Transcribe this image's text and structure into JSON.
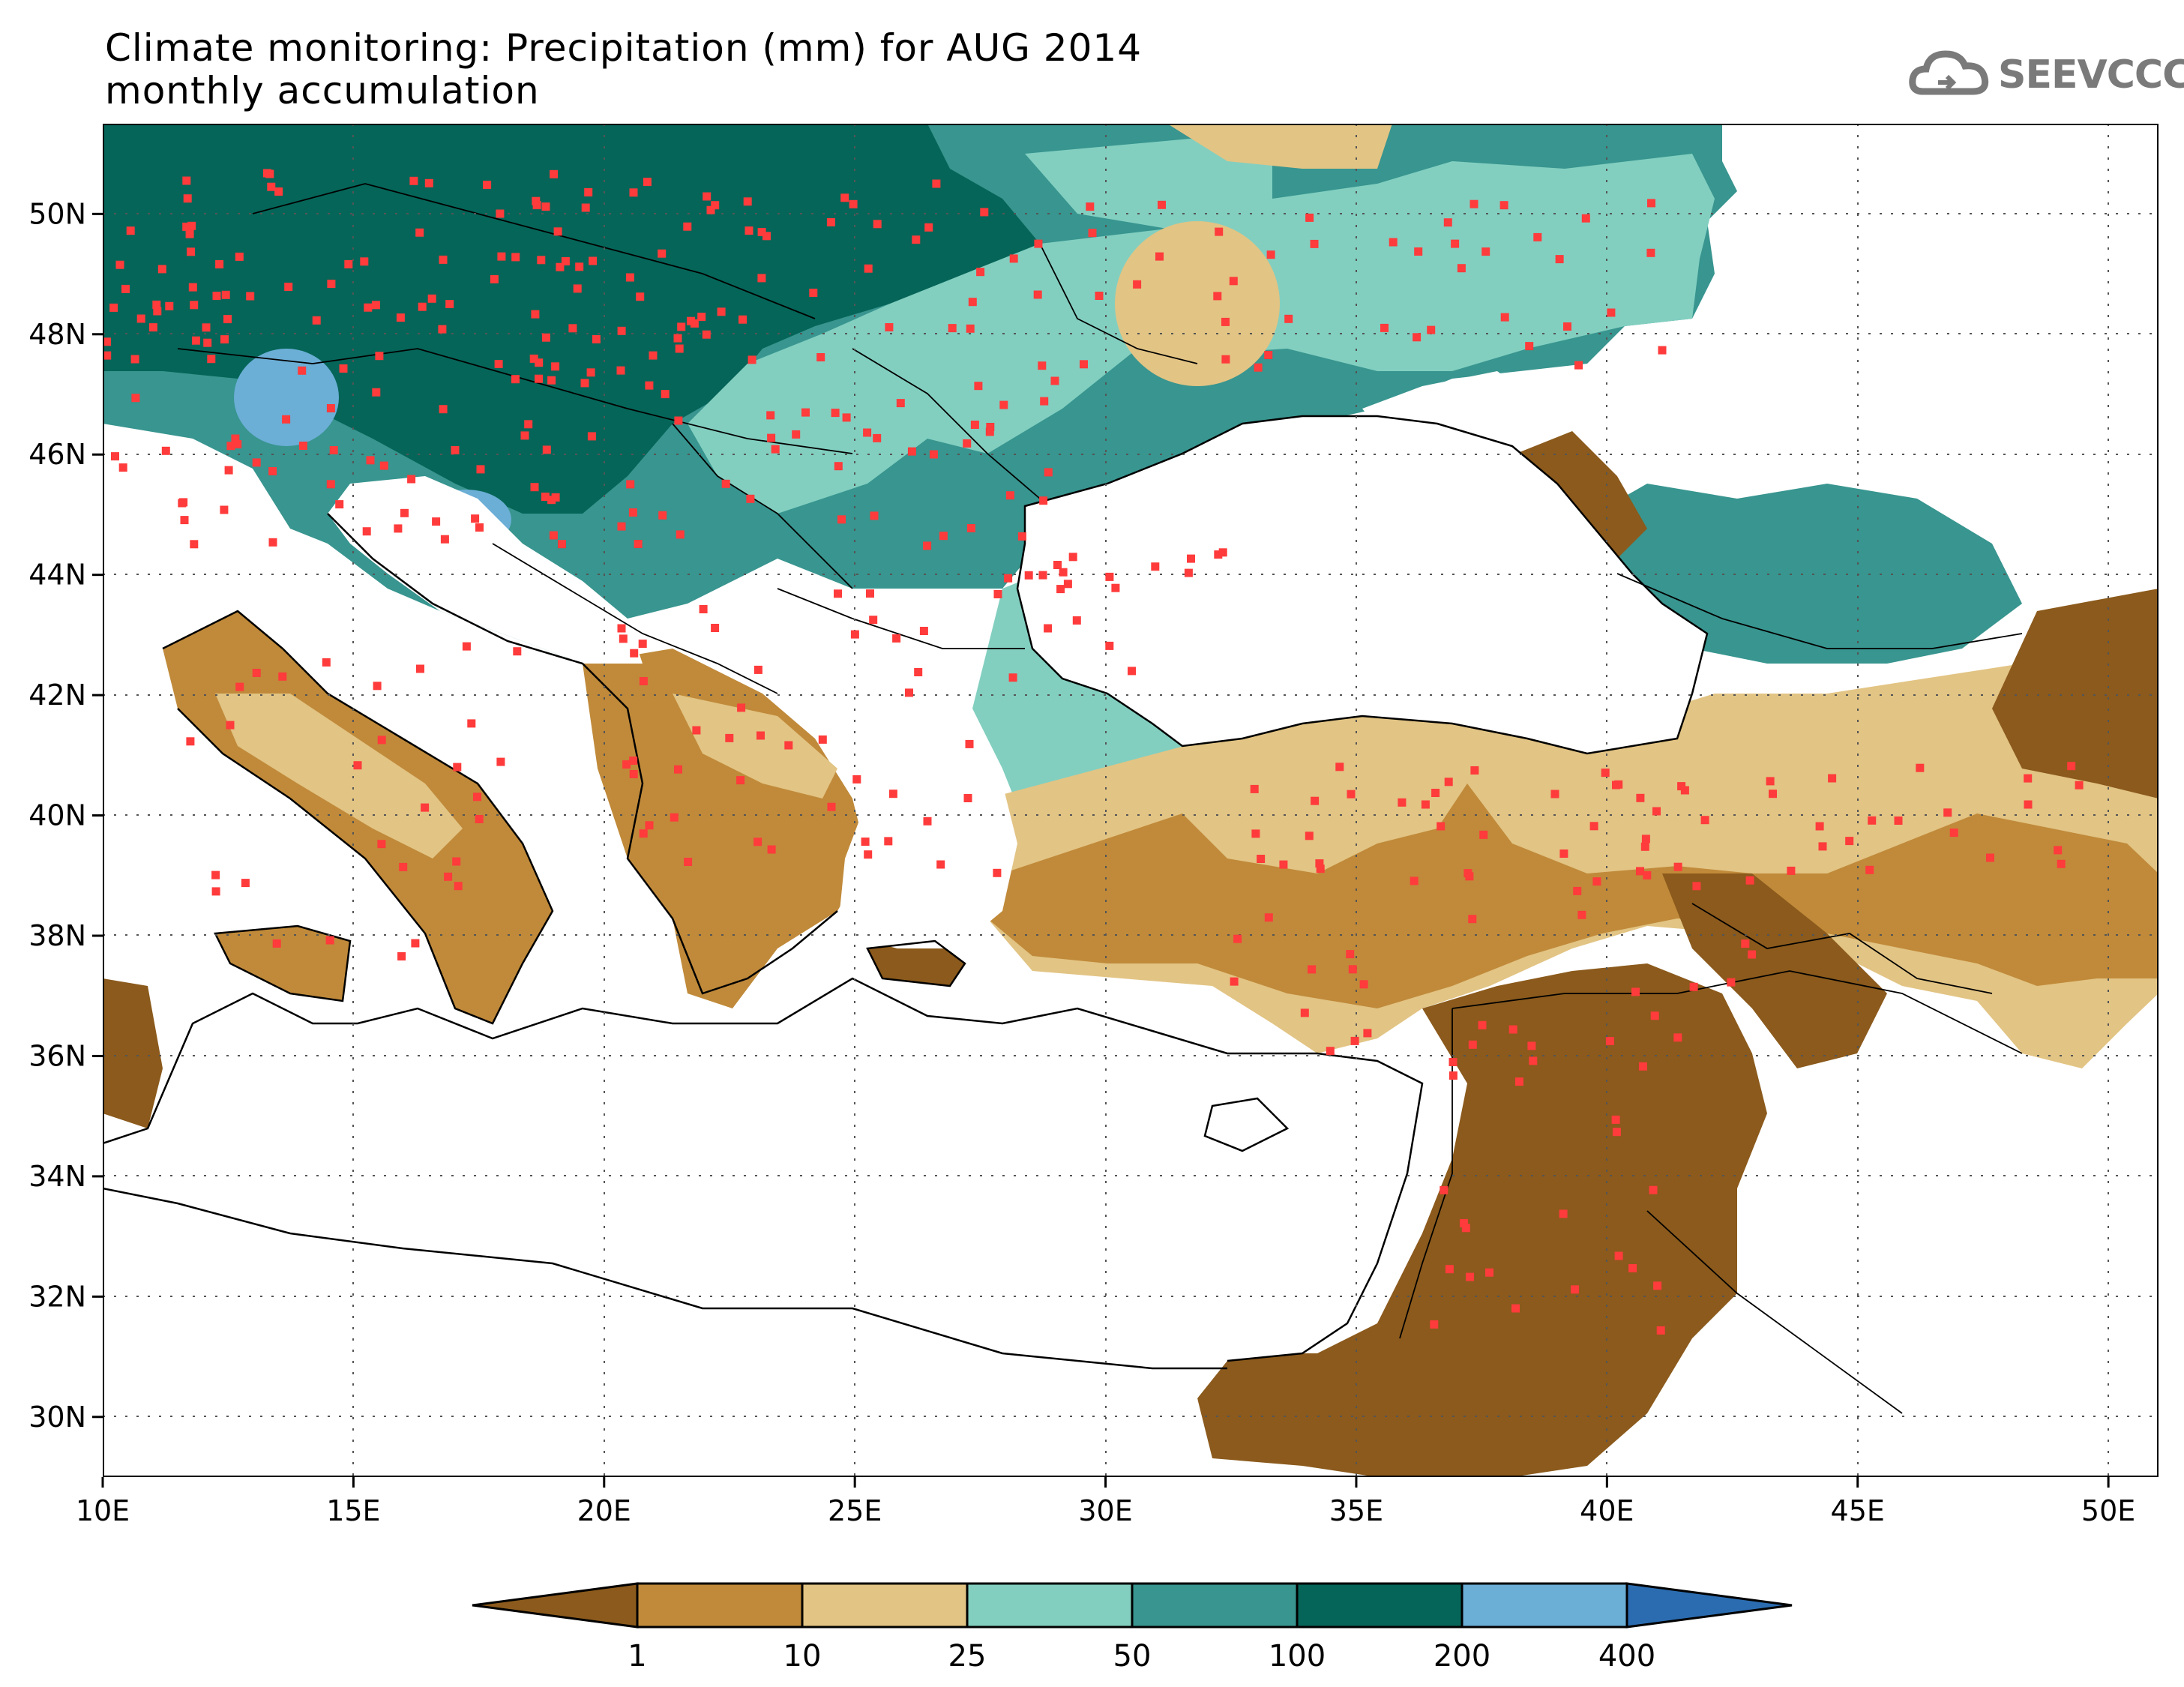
{
  "title": {
    "line1": "Climate monitoring: Precipitation (mm) for AUG 2014",
    "line2": "monthly accumulation"
  },
  "logo": {
    "text": "SEEVCCC",
    "icon": "cloud-logo-icon"
  },
  "map": {
    "lon_range": [
      10,
      51
    ],
    "lat_range": [
      29,
      51.5
    ],
    "x_ticks": [
      "10E",
      "15E",
      "20E",
      "25E",
      "30E",
      "35E",
      "40E",
      "45E",
      "50E"
    ],
    "y_ticks": [
      "30N",
      "32N",
      "34N",
      "36N",
      "38N",
      "40N",
      "42N",
      "44N",
      "46N",
      "48N",
      "50N"
    ]
  },
  "legend": {
    "thresholds": [
      "1",
      "10",
      "25",
      "50",
      "100",
      "200",
      "400"
    ],
    "colors": [
      "#8b5a1c",
      "#c08a3a",
      "#e2c484",
      "#82cfc0",
      "#38958f",
      "#056558",
      "#6baed6",
      "#2b6cb0"
    ]
  }
}
